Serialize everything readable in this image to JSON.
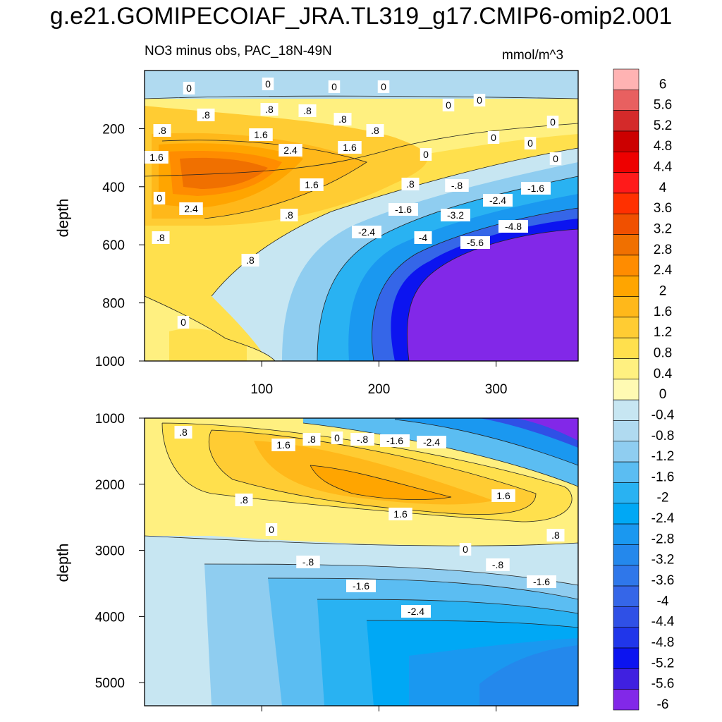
{
  "title": "g.e21.GOMIPECOIAF_JRA.TL319_g17.CMIP6-omip2.001",
  "subtitle": "NO3 minus obs, PAC_18N-49N",
  "units": "mmol/m^3",
  "chart_data": {
    "type": "heatmap",
    "description_text": "",
    "x_ticks": [
      "100",
      "200",
      "300"
    ],
    "x_range": [
      0,
      370
    ],
    "upper": {
      "ylabel": "depth",
      "y_range": [
        0,
        1000
      ],
      "y_ticks": [
        "200",
        "400",
        "600",
        "800",
        "1000"
      ],
      "contour_labels": [
        "0",
        "0",
        "0",
        "0",
        ".8",
        ".8",
        ".8",
        ".8",
        ".8",
        ".8",
        "1.6",
        "2.4",
        "1.6",
        "1.6",
        "1.6",
        "2.4",
        ".8",
        ".8",
        "0",
        ".8",
        "0",
        "0",
        "0",
        "0",
        "0",
        "0",
        "-.8",
        "-1.6",
        "-1.6",
        "-2.4",
        "-3.2",
        "-4.8",
        "-4",
        "-5.6",
        ".8",
        "-2.4",
        "0",
        "0"
      ]
    },
    "lower": {
      "ylabel": "depth",
      "y_range": [
        1000,
        5350
      ],
      "y_ticks": [
        "1000",
        "2000",
        "3000",
        "4000",
        "5000"
      ],
      "contour_labels": [
        ".8",
        "1.6",
        ".8",
        "0",
        "-.8",
        "-1.6",
        "-2.4",
        ".8",
        "1.6",
        "1.6",
        "0",
        "0",
        ".8",
        "-.8",
        "-.8",
        "-1.6",
        "-1.6",
        "-2.4"
      ]
    },
    "colorbar": {
      "levels": [
        "6",
        "5.6",
        "5.2",
        "4.8",
        "4.4",
        "4",
        "3.6",
        "3.2",
        "2.8",
        "2.4",
        "2",
        "1.6",
        "1.2",
        "0.8",
        "0.4",
        "0",
        "-0.4",
        "-0.8",
        "-1.2",
        "-1.6",
        "-2",
        "-2.4",
        "-2.8",
        "-3.2",
        "-3.6",
        "-4",
        "-4.4",
        "-4.8",
        "-5.2",
        "-5.6",
        "-6"
      ],
      "colors": [
        "#ffb3b3",
        "#e86060",
        "#d42a2a",
        "#cc0000",
        "#ee0000",
        "#ff1a1a",
        "#ff3000",
        "#f05000",
        "#f07000",
        "#ff8c00",
        "#ffa500",
        "#ffb81a",
        "#ffcc33",
        "#ffe04d",
        "#fff080",
        "#fffab3",
        "#c7e6f2",
        "#b0daf0",
        "#8fcdf0",
        "#5bbdf2",
        "#29b2f2",
        "#00a8f5",
        "#1a98f0",
        "#2488ec",
        "#2f77ea",
        "#3566e8",
        "#2f50e6",
        "#2036ea",
        "#0c14f0",
        "#4020e0",
        "#8228e8"
      ]
    }
  }
}
